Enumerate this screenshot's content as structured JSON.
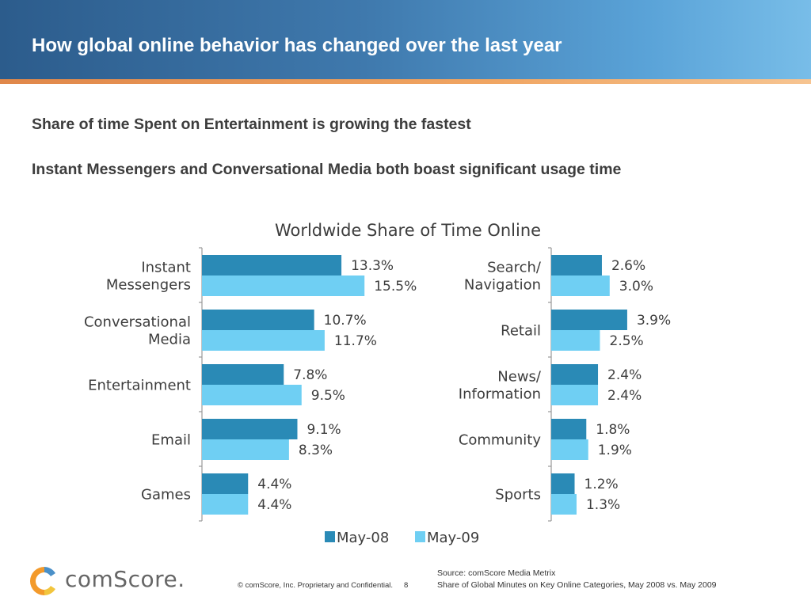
{
  "header": {
    "title": "How global online behavior has changed over the last year"
  },
  "headlines": [
    "Share of time Spent on Entertainment is growing the fastest",
    "Instant Messengers and Conversational Media both boast significant usage time"
  ],
  "colors": {
    "series_may08": "#2a8ab6",
    "series_may09": "#6fcff3",
    "axis": "#999999",
    "text": "#3d3d3d"
  },
  "chart_data": {
    "type": "bar",
    "orientation": "horizontal",
    "title": "Worldwide Share of Time Online",
    "unit": "%",
    "legend_position": "bottom",
    "grid": false,
    "legend": [
      "May-08",
      "May-09"
    ],
    "panels": [
      {
        "categories": [
          [
            "Instant",
            "Messengers"
          ],
          [
            "Conversational",
            "Media"
          ],
          [
            "Entertainment"
          ],
          [
            "Email"
          ],
          [
            "Games"
          ]
        ],
        "series": [
          {
            "name": "May-08",
            "values": [
              13.3,
              10.7,
              7.8,
              9.1,
              4.4
            ]
          },
          {
            "name": "May-09",
            "values": [
              15.5,
              11.7,
              9.5,
              8.3,
              4.4
            ]
          }
        ]
      },
      {
        "categories": [
          [
            "Search/",
            "Navigation"
          ],
          [
            "Retail"
          ],
          [
            "News/",
            "Information"
          ],
          [
            "Community"
          ],
          [
            "Sports"
          ]
        ],
        "series": [
          {
            "name": "May-08",
            "values": [
              2.6,
              3.9,
              2.4,
              1.8,
              1.2
            ]
          },
          {
            "name": "May-09",
            "values": [
              3.0,
              2.5,
              2.4,
              1.9,
              1.3
            ]
          }
        ]
      }
    ]
  },
  "footer": {
    "brand": "comScore.",
    "copyright": "© comScore, Inc.  Proprietary and Confidential.",
    "page_number": "8",
    "source_line1": "Source: comScore Media Metrix",
    "source_line2": "Share of Global Minutes on Key Online Categories, May 2008 vs. May 2009"
  }
}
